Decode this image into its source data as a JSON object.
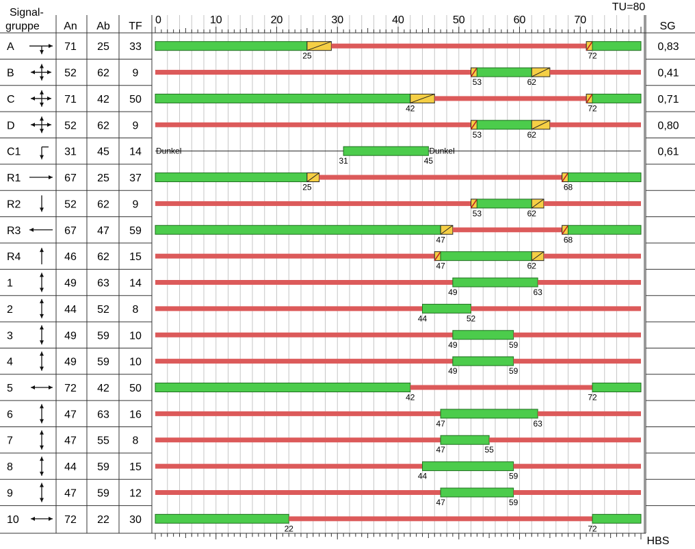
{
  "header": {
    "signal_group_line1": "Signal-",
    "signal_group_line2": "gruppe",
    "col_on": "An",
    "col_off": "Ab",
    "col_green_time": "TF",
    "col_degree": "SG",
    "cycle_time": "TU=80",
    "footer": "HBS"
  },
  "axis": {
    "min": 0,
    "max": 80,
    "tick_labels": [
      "0",
      "10",
      "20",
      "30",
      "40",
      "50",
      "60",
      "70"
    ]
  },
  "colors": {
    "green": "#4ccc4c",
    "red": "#dc5a5a",
    "yellow": "#f5cf45",
    "grid": "#c6c6c6"
  },
  "rows": [
    {
      "name": "A",
      "symbol": "arrow-left-right-down-icon",
      "on": "71",
      "off": "25",
      "tf": "33",
      "sg": "0,83",
      "segments": [
        {
          "kind": "green",
          "from": 0,
          "to": 25
        },
        {
          "kind": "amber",
          "from": 25,
          "to": 29
        },
        {
          "kind": "red",
          "from": 29,
          "to": 71
        },
        {
          "kind": "redamber",
          "from": 71,
          "to": 72
        },
        {
          "kind": "green",
          "from": 72,
          "to": 80
        }
      ],
      "labels": [
        {
          "value": "25",
          "at": 25
        },
        {
          "value": "72",
          "at": 72
        }
      ]
    },
    {
      "name": "B",
      "symbol": "arrow-all-directions-icon",
      "on": "52",
      "off": "62",
      "tf": "9",
      "sg": "0,41",
      "segments": [
        {
          "kind": "red",
          "from": 0,
          "to": 52
        },
        {
          "kind": "redamber",
          "from": 52,
          "to": 53
        },
        {
          "kind": "green",
          "from": 53,
          "to": 62
        },
        {
          "kind": "amber",
          "from": 62,
          "to": 65
        },
        {
          "kind": "red",
          "from": 65,
          "to": 80
        }
      ],
      "labels": [
        {
          "value": "53",
          "at": 53
        },
        {
          "value": "62",
          "at": 62
        }
      ]
    },
    {
      "name": "C",
      "symbol": "arrow-all-directions-icon",
      "on": "71",
      "off": "42",
      "tf": "50",
      "sg": "0,71",
      "segments": [
        {
          "kind": "green",
          "from": 0,
          "to": 42
        },
        {
          "kind": "amber",
          "from": 42,
          "to": 46
        },
        {
          "kind": "red",
          "from": 46,
          "to": 71
        },
        {
          "kind": "redamber",
          "from": 71,
          "to": 72
        },
        {
          "kind": "green",
          "from": 72,
          "to": 80
        }
      ],
      "labels": [
        {
          "value": "42",
          "at": 42
        },
        {
          "value": "72",
          "at": 72
        }
      ]
    },
    {
      "name": "D",
      "symbol": "arrow-all-directions-icon",
      "on": "52",
      "off": "62",
      "tf": "9",
      "sg": "0,80",
      "segments": [
        {
          "kind": "red",
          "from": 0,
          "to": 52
        },
        {
          "kind": "redamber",
          "from": 52,
          "to": 53
        },
        {
          "kind": "green",
          "from": 53,
          "to": 62
        },
        {
          "kind": "amber",
          "from": 62,
          "to": 65
        },
        {
          "kind": "red",
          "from": 65,
          "to": 80
        }
      ],
      "labels": [
        {
          "value": "53",
          "at": 53
        },
        {
          "value": "62",
          "at": 62
        }
      ]
    },
    {
      "name": "C1",
      "symbol": "arrow-turn-down-icon",
      "on": "31",
      "off": "45",
      "tf": "14",
      "sg": "0,61",
      "segments": [
        {
          "kind": "dark",
          "from": 0,
          "to": 31
        },
        {
          "kind": "green",
          "from": 31,
          "to": 45
        },
        {
          "kind": "dark",
          "from": 45,
          "to": 80
        }
      ],
      "labels": [
        {
          "value": "31",
          "at": 31
        },
        {
          "value": "45",
          "at": 45
        }
      ],
      "texts": [
        {
          "value": "Dunkel",
          "at": 0
        },
        {
          "value": "Dunkel",
          "at": 45
        }
      ]
    },
    {
      "name": "R1",
      "symbol": "arrow-right-icon",
      "on": "67",
      "off": "25",
      "tf": "37",
      "sg": "",
      "segments": [
        {
          "kind": "green",
          "from": 0,
          "to": 25
        },
        {
          "kind": "amber",
          "from": 25,
          "to": 27
        },
        {
          "kind": "red",
          "from": 27,
          "to": 67
        },
        {
          "kind": "redamber",
          "from": 67,
          "to": 68
        },
        {
          "kind": "green",
          "from": 68,
          "to": 80
        }
      ],
      "labels": [
        {
          "value": "25",
          "at": 25
        },
        {
          "value": "68",
          "at": 68
        }
      ]
    },
    {
      "name": "R2",
      "symbol": "arrow-down-icon",
      "on": "52",
      "off": "62",
      "tf": "9",
      "sg": "",
      "segments": [
        {
          "kind": "red",
          "from": 0,
          "to": 52
        },
        {
          "kind": "redamber",
          "from": 52,
          "to": 53
        },
        {
          "kind": "green",
          "from": 53,
          "to": 62
        },
        {
          "kind": "amber",
          "from": 62,
          "to": 64
        },
        {
          "kind": "red",
          "from": 64,
          "to": 80
        }
      ],
      "labels": [
        {
          "value": "53",
          "at": 53
        },
        {
          "value": "62",
          "at": 62
        }
      ]
    },
    {
      "name": "R3",
      "symbol": "arrow-left-icon",
      "on": "67",
      "off": "47",
      "tf": "59",
      "sg": "",
      "segments": [
        {
          "kind": "green",
          "from": 0,
          "to": 47
        },
        {
          "kind": "amber",
          "from": 47,
          "to": 49
        },
        {
          "kind": "red",
          "from": 49,
          "to": 67
        },
        {
          "kind": "redamber",
          "from": 67,
          "to": 68
        },
        {
          "kind": "green",
          "from": 68,
          "to": 80
        }
      ],
      "labels": [
        {
          "value": "47",
          "at": 47
        },
        {
          "value": "68",
          "at": 68
        }
      ]
    },
    {
      "name": "R4",
      "symbol": "arrow-up-icon",
      "on": "46",
      "off": "62",
      "tf": "15",
      "sg": "",
      "segments": [
        {
          "kind": "red",
          "from": 0,
          "to": 46
        },
        {
          "kind": "redamber",
          "from": 46,
          "to": 47
        },
        {
          "kind": "green",
          "from": 47,
          "to": 62
        },
        {
          "kind": "amber",
          "from": 62,
          "to": 64
        },
        {
          "kind": "red",
          "from": 64,
          "to": 80
        }
      ],
      "labels": [
        {
          "value": "47",
          "at": 47
        },
        {
          "value": "62",
          "at": 62
        }
      ]
    },
    {
      "name": "1",
      "symbol": "arrow-up-down-icon",
      "on": "49",
      "off": "63",
      "tf": "14",
      "sg": "",
      "segments": [
        {
          "kind": "red",
          "from": 0,
          "to": 49
        },
        {
          "kind": "green",
          "from": 49,
          "to": 63
        },
        {
          "kind": "red",
          "from": 63,
          "to": 80
        }
      ],
      "labels": [
        {
          "value": "49",
          "at": 49
        },
        {
          "value": "63",
          "at": 63
        }
      ]
    },
    {
      "name": "2",
      "symbol": "arrow-up-down-icon",
      "on": "44",
      "off": "52",
      "tf": "8",
      "sg": "",
      "segments": [
        {
          "kind": "red",
          "from": 0,
          "to": 44
        },
        {
          "kind": "green",
          "from": 44,
          "to": 52
        },
        {
          "kind": "red",
          "from": 52,
          "to": 80
        }
      ],
      "labels": [
        {
          "value": "44",
          "at": 44
        },
        {
          "value": "52",
          "at": 52
        }
      ]
    },
    {
      "name": "3",
      "symbol": "arrow-up-down-icon",
      "on": "49",
      "off": "59",
      "tf": "10",
      "sg": "",
      "segments": [
        {
          "kind": "red",
          "from": 0,
          "to": 49
        },
        {
          "kind": "green",
          "from": 49,
          "to": 59
        },
        {
          "kind": "red",
          "from": 59,
          "to": 80
        }
      ],
      "labels": [
        {
          "value": "49",
          "at": 49
        },
        {
          "value": "59",
          "at": 59
        }
      ]
    },
    {
      "name": "4",
      "symbol": "arrow-up-down-icon",
      "on": "49",
      "off": "59",
      "tf": "10",
      "sg": "",
      "segments": [
        {
          "kind": "red",
          "from": 0,
          "to": 49
        },
        {
          "kind": "green",
          "from": 49,
          "to": 59
        },
        {
          "kind": "red",
          "from": 59,
          "to": 80
        }
      ],
      "labels": [
        {
          "value": "49",
          "at": 49
        },
        {
          "value": "59",
          "at": 59
        }
      ]
    },
    {
      "name": "5",
      "symbol": "arrow-left-right-icon",
      "on": "72",
      "off": "42",
      "tf": "50",
      "sg": "",
      "segments": [
        {
          "kind": "green",
          "from": 0,
          "to": 42
        },
        {
          "kind": "red",
          "from": 42,
          "to": 72
        },
        {
          "kind": "green",
          "from": 72,
          "to": 80
        }
      ],
      "labels": [
        {
          "value": "42",
          "at": 42
        },
        {
          "value": "72",
          "at": 72
        }
      ]
    },
    {
      "name": "6",
      "symbol": "arrow-up-down-icon",
      "on": "47",
      "off": "63",
      "tf": "16",
      "sg": "",
      "segments": [
        {
          "kind": "red",
          "from": 0,
          "to": 47
        },
        {
          "kind": "green",
          "from": 47,
          "to": 63
        },
        {
          "kind": "red",
          "from": 63,
          "to": 80
        }
      ],
      "labels": [
        {
          "value": "47",
          "at": 47
        },
        {
          "value": "63",
          "at": 63
        }
      ]
    },
    {
      "name": "7",
      "symbol": "arrow-up-down-icon",
      "on": "47",
      "off": "55",
      "tf": "8",
      "sg": "",
      "segments": [
        {
          "kind": "red",
          "from": 0,
          "to": 47
        },
        {
          "kind": "green",
          "from": 47,
          "to": 55
        },
        {
          "kind": "red",
          "from": 55,
          "to": 80
        }
      ],
      "labels": [
        {
          "value": "47",
          "at": 47
        },
        {
          "value": "55",
          "at": 55
        }
      ]
    },
    {
      "name": "8",
      "symbol": "arrow-up-down-icon",
      "on": "44",
      "off": "59",
      "tf": "15",
      "sg": "",
      "segments": [
        {
          "kind": "red",
          "from": 0,
          "to": 44
        },
        {
          "kind": "green",
          "from": 44,
          "to": 59
        },
        {
          "kind": "red",
          "from": 59,
          "to": 80
        }
      ],
      "labels": [
        {
          "value": "44",
          "at": 44
        },
        {
          "value": "59",
          "at": 59
        }
      ]
    },
    {
      "name": "9",
      "symbol": "arrow-up-down-icon",
      "on": "47",
      "off": "59",
      "tf": "12",
      "sg": "",
      "segments": [
        {
          "kind": "red",
          "from": 0,
          "to": 47
        },
        {
          "kind": "green",
          "from": 47,
          "to": 59
        },
        {
          "kind": "red",
          "from": 59,
          "to": 80
        }
      ],
      "labels": [
        {
          "value": "47",
          "at": 47
        },
        {
          "value": "59",
          "at": 59
        }
      ]
    },
    {
      "name": "10",
      "symbol": "arrow-left-right-icon",
      "on": "72",
      "off": "22",
      "tf": "30",
      "sg": "",
      "segments": [
        {
          "kind": "green",
          "from": 0,
          "to": 22
        },
        {
          "kind": "red",
          "from": 22,
          "to": 72
        },
        {
          "kind": "green",
          "from": 72,
          "to": 80
        }
      ],
      "labels": [
        {
          "value": "22",
          "at": 22
        },
        {
          "value": "72",
          "at": 72
        }
      ]
    }
  ]
}
